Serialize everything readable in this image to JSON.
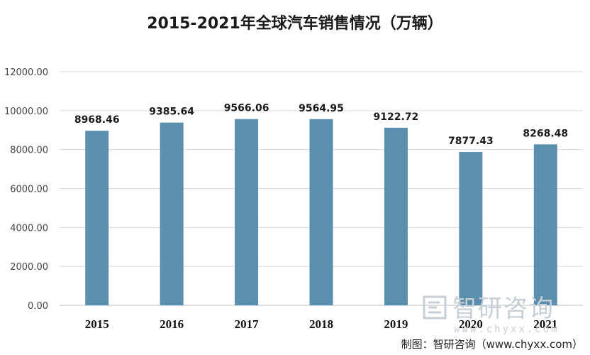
{
  "chart_data": {
    "type": "bar",
    "title": "2015-2021年全球汽车销售情况（万辆）",
    "categories": [
      "2015",
      "2016",
      "2017",
      "2018",
      "2019",
      "2020",
      "2021"
    ],
    "values": [
      8968.46,
      9385.64,
      9566.06,
      9564.95,
      9122.72,
      7877.43,
      8268.48
    ],
    "data_labels": [
      "8968.46",
      "9385.64",
      "9566.06",
      "9564.95",
      "9122.72",
      "7877.43",
      "8268.48"
    ],
    "ylim": [
      0,
      12000
    ],
    "yticks": [
      "0.00",
      "2000.00",
      "4000.00",
      "6000.00",
      "8000.00",
      "10000.00",
      "12000.00"
    ],
    "grid": true,
    "legend": "none",
    "bar_color": "#5b8fae"
  },
  "watermark": {
    "name": "智研咨询",
    "url": "www.chyxx.com",
    "color": "#c7ced6"
  },
  "source": "制图：智研咨询（www.chyxx.com）"
}
